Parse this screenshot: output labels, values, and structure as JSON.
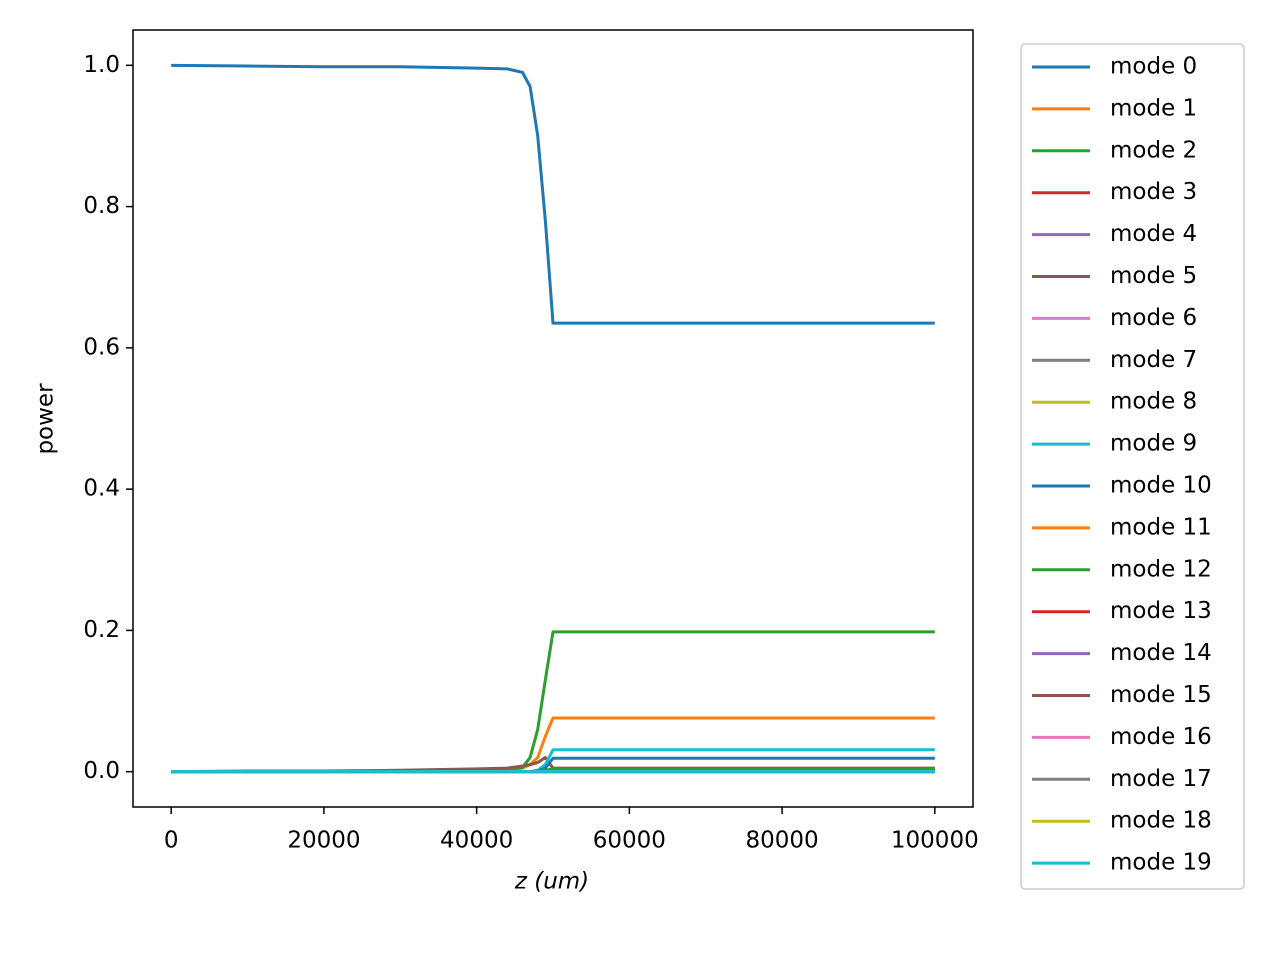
{
  "chart_data": {
    "type": "line",
    "xlabel": "z (um)",
    "ylabel": "power",
    "x": [
      0,
      10000,
      20000,
      30000,
      40000,
      44000,
      46000,
      47000,
      48000,
      49000,
      50000,
      60000,
      70000,
      80000,
      90000,
      100000
    ],
    "xlim": [
      -5000,
      105000
    ],
    "ylim": [
      -0.05,
      1.05
    ],
    "xticks": [
      0,
      20000,
      40000,
      60000,
      80000,
      100000
    ],
    "yticks": [
      {
        "value": 0,
        "label": "0.0"
      },
      0.2,
      0.4,
      0.6,
      0.8,
      {
        "value": 1,
        "label": "1.0"
      }
    ],
    "legend": "outside-right",
    "series": [
      {
        "name": "mode 0",
        "color": "#1f77b4",
        "values": [
          1.0,
          0.999,
          0.998,
          0.998,
          0.996,
          0.995,
          0.99,
          0.97,
          0.9,
          0.78,
          0.635,
          0.635,
          0.635,
          0.635,
          0.635,
          0.635
        ]
      },
      {
        "name": "mode 1",
        "color": "#ff7f0e",
        "values": [
          0,
          0,
          0,
          0,
          0.001,
          0.002,
          0.005,
          0.01,
          0.02,
          0.05,
          0.076,
          0.076,
          0.076,
          0.076,
          0.076,
          0.076
        ]
      },
      {
        "name": "mode 2",
        "color": "#2ca02c",
        "values": [
          0,
          0,
          0,
          0,
          0.001,
          0.002,
          0.006,
          0.02,
          0.06,
          0.13,
          0.198,
          0.198,
          0.198,
          0.198,
          0.198,
          0.198
        ]
      },
      {
        "name": "mode 3",
        "color": "#d62728",
        "values": [
          0,
          0,
          0,
          0,
          0,
          0,
          0,
          0,
          0,
          0,
          0,
          0,
          0,
          0,
          0,
          0
        ]
      },
      {
        "name": "mode 4",
        "color": "#9467bd",
        "values": [
          0,
          0,
          0,
          0,
          0,
          0,
          0,
          0,
          0,
          0,
          0,
          0,
          0,
          0,
          0,
          0
        ]
      },
      {
        "name": "mode 5",
        "color": "#8c564b",
        "values": [
          0,
          0.001,
          0.001,
          0.002,
          0.004,
          0.005,
          0.008,
          0.01,
          0.013,
          0.02,
          0.005,
          0.005,
          0.005,
          0.005,
          0.005,
          0.005
        ]
      },
      {
        "name": "mode 6",
        "color": "#e377c2",
        "values": [
          0,
          0,
          0,
          0,
          0,
          0,
          0,
          0,
          0,
          0,
          0,
          0,
          0,
          0,
          0,
          0
        ]
      },
      {
        "name": "mode 7",
        "color": "#7f7f7f",
        "values": [
          0,
          0,
          0,
          0,
          0,
          0,
          0,
          0,
          0,
          0,
          0,
          0,
          0,
          0,
          0,
          0
        ]
      },
      {
        "name": "mode 8",
        "color": "#bcbd22",
        "values": [
          0,
          0,
          0,
          0,
          0,
          0,
          0,
          0,
          0.001,
          0.002,
          0.003,
          0.003,
          0.003,
          0.003,
          0.003,
          0.003
        ]
      },
      {
        "name": "mode 9",
        "color": "#17becf",
        "values": [
          0,
          0,
          0,
          0,
          0,
          0,
          0,
          0,
          0.002,
          0.01,
          0.031,
          0.031,
          0.031,
          0.031,
          0.031,
          0.031
        ]
      },
      {
        "name": "mode 10",
        "color": "#1f77b4",
        "values": [
          0,
          0,
          0,
          0,
          0,
          0,
          0,
          0,
          0.001,
          0.005,
          0.019,
          0.019,
          0.019,
          0.019,
          0.019,
          0.019
        ]
      },
      {
        "name": "mode 11",
        "color": "#ff7f0e",
        "values": [
          0,
          0,
          0,
          0,
          0,
          0,
          0,
          0,
          0,
          0,
          0,
          0,
          0,
          0,
          0,
          0
        ]
      },
      {
        "name": "mode 12",
        "color": "#2ca02c",
        "values": [
          0,
          0,
          0,
          0,
          0,
          0,
          0,
          0,
          0.001,
          0.002,
          0.004,
          0.004,
          0.004,
          0.004,
          0.004,
          0.004
        ]
      },
      {
        "name": "mode 13",
        "color": "#d62728",
        "values": [
          0,
          0,
          0,
          0,
          0,
          0,
          0,
          0,
          0,
          0,
          0,
          0,
          0,
          0,
          0,
          0
        ]
      },
      {
        "name": "mode 14",
        "color": "#9467bd",
        "values": [
          0,
          0,
          0,
          0,
          0,
          0,
          0,
          0,
          0,
          0,
          0,
          0,
          0,
          0,
          0,
          0
        ]
      },
      {
        "name": "mode 15",
        "color": "#8c564b",
        "values": [
          0,
          0,
          0,
          0,
          0,
          0,
          0,
          0,
          0,
          0,
          0,
          0,
          0,
          0,
          0,
          0
        ]
      },
      {
        "name": "mode 16",
        "color": "#e377c2",
        "values": [
          0,
          0,
          0,
          0,
          0,
          0,
          0,
          0,
          0,
          0,
          0,
          0,
          0,
          0,
          0,
          0
        ]
      },
      {
        "name": "mode 17",
        "color": "#7f7f7f",
        "values": [
          0,
          0,
          0,
          0,
          0,
          0,
          0,
          0,
          0,
          0,
          0,
          0,
          0,
          0,
          0,
          0
        ]
      },
      {
        "name": "mode 18",
        "color": "#bcbd22",
        "values": [
          0,
          0,
          0,
          0,
          0,
          0,
          0,
          0,
          0,
          0,
          0,
          0,
          0,
          0,
          0,
          0
        ]
      },
      {
        "name": "mode 19",
        "color": "#17becf",
        "values": [
          0,
          0,
          0,
          0,
          0,
          0,
          0,
          0,
          0,
          0,
          0,
          0,
          0,
          0,
          0,
          0
        ]
      }
    ]
  }
}
